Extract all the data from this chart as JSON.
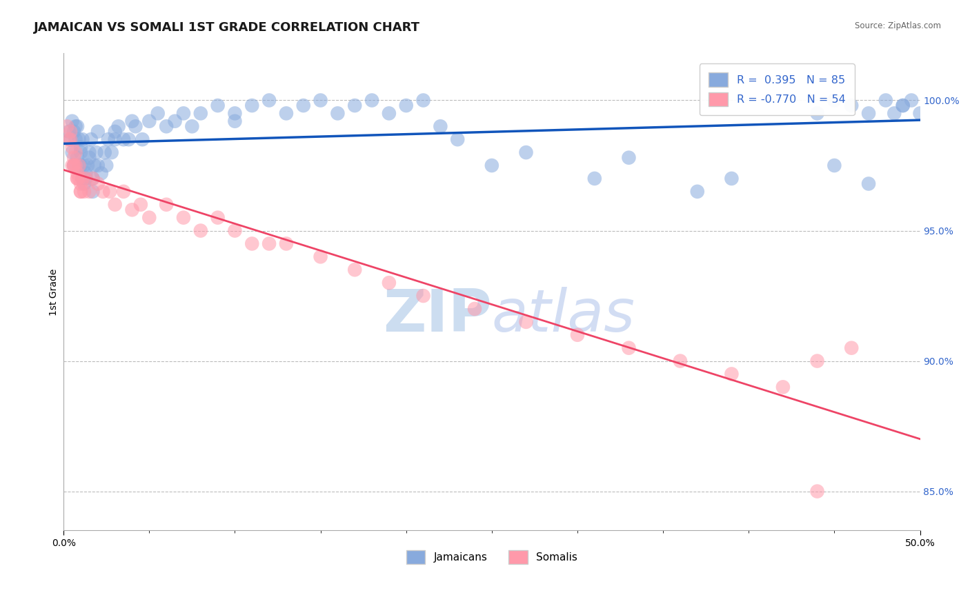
{
  "title": "JAMAICAN VS SOMALI 1ST GRADE CORRELATION CHART",
  "source": "Source: ZipAtlas.com",
  "ylabel": "1st Grade",
  "xmin": 0.0,
  "xmax": 50.0,
  "ymin": 83.5,
  "ymax": 101.8,
  "yticks": [
    85.0,
    90.0,
    95.0,
    100.0
  ],
  "ytick_labels": [
    "85.0%",
    "90.0%",
    "95.0%",
    "100.0%"
  ],
  "r_jamaican": 0.395,
  "n_jamaican": 85,
  "r_somali": -0.77,
  "n_somali": 54,
  "blue_dot_color": "#88AADD",
  "pink_dot_color": "#FF99AA",
  "blue_line_color": "#1155BB",
  "pink_line_color": "#EE4466",
  "tick_label_color": "#3366CC",
  "watermark_zip_color": "#CCDDF0",
  "watermark_atlas_color": "#BBCCEE",
  "legend_r_color": "#3366CC",
  "background_color": "#FFFFFF",
  "title_fontsize": 13,
  "axis_label_fontsize": 10,
  "tick_fontsize": 10,
  "legend_fontsize": 11.5,
  "jamaican_x": [
    0.3,
    0.4,
    0.5,
    0.5,
    0.6,
    0.6,
    0.7,
    0.7,
    0.8,
    0.8,
    0.9,
    0.9,
    1.0,
    1.0,
    1.0,
    1.1,
    1.1,
    1.2,
    1.2,
    1.3,
    1.3,
    1.4,
    1.5,
    1.5,
    1.6,
    1.7,
    1.7,
    1.8,
    1.9,
    2.0,
    2.0,
    2.2,
    2.4,
    2.5,
    2.6,
    2.8,
    3.0,
    3.0,
    3.2,
    3.5,
    3.8,
    4.0,
    4.2,
    4.6,
    5.0,
    5.5,
    6.0,
    6.5,
    7.0,
    7.5,
    8.0,
    9.0,
    10.0,
    10.0,
    11.0,
    12.0,
    13.0,
    14.0,
    15.0,
    16.0,
    17.0,
    18.0,
    19.0,
    20.0,
    21.0,
    22.0,
    23.0,
    25.0,
    27.0,
    31.0,
    33.0,
    37.0,
    39.0,
    45.0,
    47.0,
    48.5,
    49.0,
    49.5,
    50.0,
    49.0,
    48.0,
    47.0,
    46.0,
    45.0,
    44.0
  ],
  "jamaican_y": [
    98.8,
    98.5,
    99.2,
    98.0,
    97.5,
    98.8,
    99.0,
    98.5,
    97.8,
    99.0,
    98.5,
    97.5,
    98.0,
    98.2,
    97.5,
    97.0,
    98.5,
    96.8,
    97.5,
    97.0,
    97.2,
    97.5,
    98.0,
    97.8,
    98.5,
    97.0,
    96.5,
    97.5,
    98.0,
    97.5,
    98.8,
    97.2,
    98.0,
    97.5,
    98.5,
    98.0,
    98.5,
    98.8,
    99.0,
    98.5,
    98.5,
    99.2,
    99.0,
    98.5,
    99.2,
    99.5,
    99.0,
    99.2,
    99.5,
    99.0,
    99.5,
    99.8,
    99.5,
    99.2,
    99.8,
    100.0,
    99.5,
    99.8,
    100.0,
    99.5,
    99.8,
    100.0,
    99.5,
    99.8,
    100.0,
    99.0,
    98.5,
    97.5,
    98.0,
    97.0,
    97.8,
    96.5,
    97.0,
    97.5,
    96.8,
    99.5,
    99.8,
    100.0,
    99.5,
    99.8,
    100.0,
    99.5,
    99.8,
    100.0,
    99.5
  ],
  "somali_x": [
    0.2,
    0.3,
    0.4,
    0.4,
    0.5,
    0.5,
    0.6,
    0.6,
    0.7,
    0.7,
    0.8,
    0.8,
    0.9,
    0.9,
    1.0,
    1.0,
    1.1,
    1.2,
    1.3,
    1.5,
    1.7,
    2.0,
    2.3,
    2.7,
    3.0,
    3.5,
    4.0,
    4.5,
    5.0,
    6.0,
    7.0,
    8.0,
    9.0,
    10.0,
    11.0,
    12.0,
    13.0,
    15.0,
    17.0,
    19.0,
    21.0,
    24.0,
    27.0,
    30.0,
    33.0,
    36.0,
    39.0,
    42.0,
    44.0,
    46.0,
    0.6,
    0.8,
    1.0,
    44.0
  ],
  "somali_y": [
    99.0,
    98.5,
    98.8,
    98.5,
    98.2,
    97.5,
    97.8,
    97.5,
    98.0,
    97.5,
    97.2,
    97.0,
    97.5,
    97.0,
    96.8,
    96.5,
    97.0,
    96.5,
    97.0,
    96.5,
    97.0,
    96.8,
    96.5,
    96.5,
    96.0,
    96.5,
    95.8,
    96.0,
    95.5,
    96.0,
    95.5,
    95.0,
    95.5,
    95.0,
    94.5,
    94.5,
    94.5,
    94.0,
    93.5,
    93.0,
    92.5,
    92.0,
    91.5,
    91.0,
    90.5,
    90.0,
    89.5,
    89.0,
    90.0,
    90.5,
    97.5,
    97.0,
    96.5,
    85.0
  ]
}
